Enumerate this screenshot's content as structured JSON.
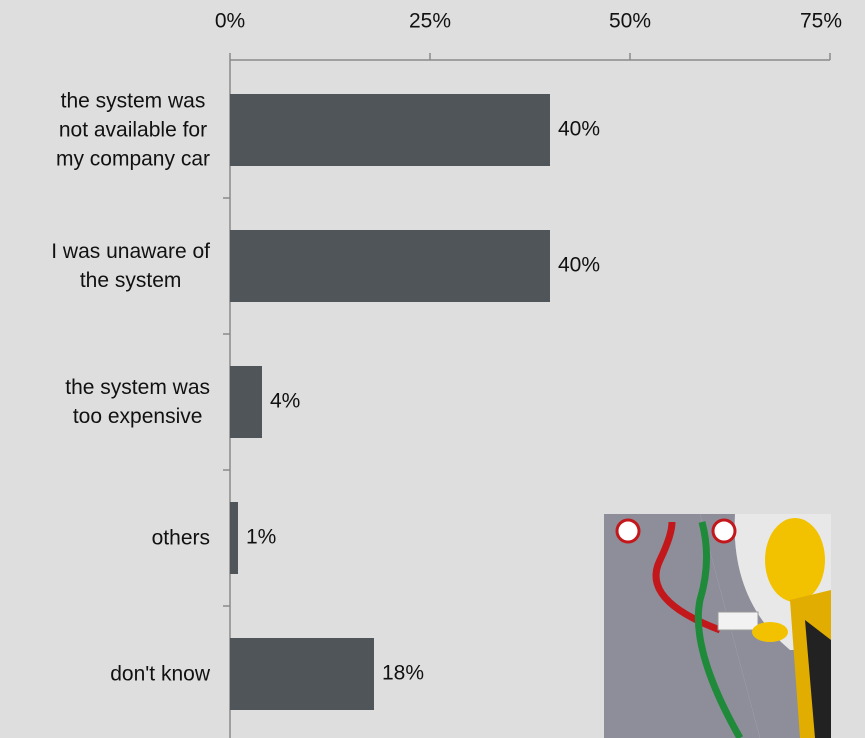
{
  "chart_data": {
    "type": "bar",
    "orientation": "horizontal",
    "categories": [
      "the system was\nnot available for\nmy company car",
      "I was unaware of\nthe system",
      "the system was\ntoo expensive",
      "others",
      "don't know"
    ],
    "values": [
      40,
      40,
      4,
      1,
      18
    ],
    "value_labels": [
      "40%",
      "40%",
      "4%",
      "1%",
      "18%"
    ],
    "color": "#505559",
    "xlim": [
      0,
      75
    ],
    "xticks": [
      {
        "value": 0,
        "label": "0%"
      },
      {
        "value": 25,
        "label": "25%"
      },
      {
        "value": 50,
        "label": "50%"
      },
      {
        "value": 75,
        "label": "75%"
      }
    ],
    "grid": false
  }
}
